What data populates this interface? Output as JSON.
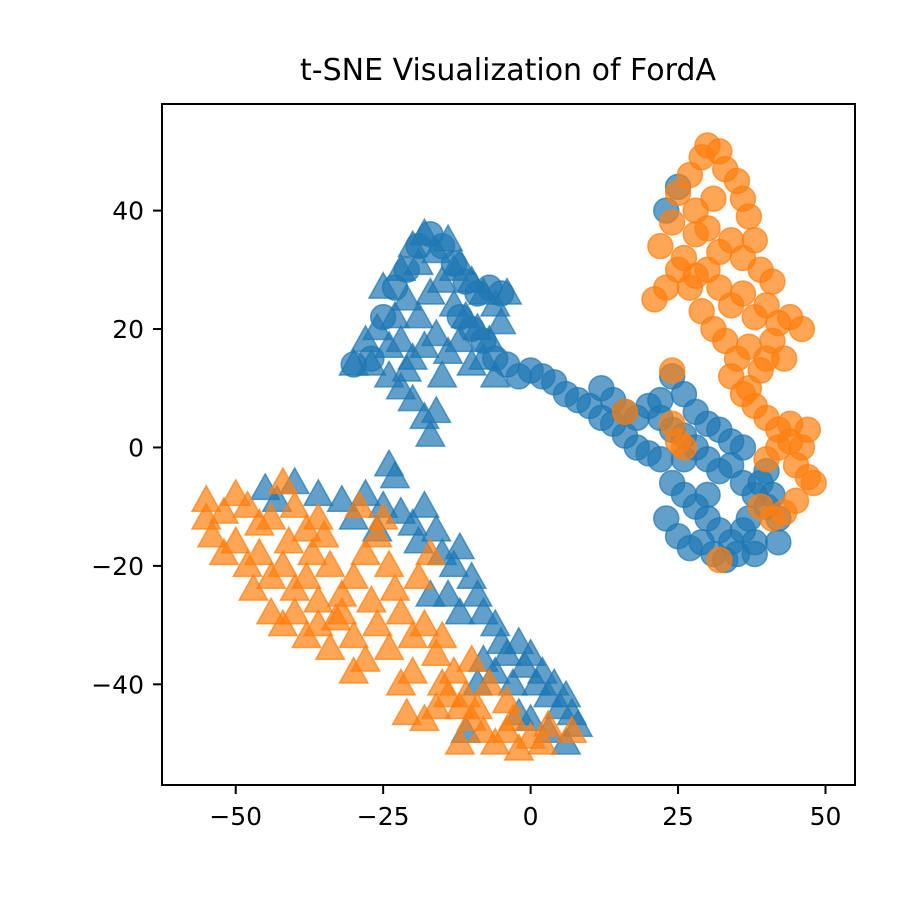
{
  "chart_data": {
    "type": "scatter",
    "title": "t-SNE Visualization of FordA",
    "xlabel": "",
    "ylabel": "",
    "xlim": [
      -62.5,
      55
    ],
    "ylim": [
      -57,
      58
    ],
    "x_ticks": [
      -50,
      -25,
      0,
      25,
      50
    ],
    "y_ticks": [
      -40,
      -20,
      0,
      20,
      40
    ],
    "x_tick_labels": [
      "−50",
      "−25",
      "0",
      "25",
      "50"
    ],
    "y_tick_labels": [
      "−40",
      "−20",
      "0",
      "20",
      "40"
    ],
    "grid": false,
    "legend": "none",
    "colors": {
      "class_0": "#1f77b4",
      "class_1": "#ff7f0e",
      "axes": "#000000"
    },
    "marker_names": {
      "circle": "circle-marker",
      "triangle": "triangle-marker"
    },
    "alpha": 0.7,
    "series": [
      {
        "color": "#1f77b4",
        "marker": "triangle",
        "points": [
          [
            -25,
            27
          ],
          [
            -22,
            30
          ],
          [
            -20,
            34
          ],
          [
            -18,
            36
          ],
          [
            -16,
            33
          ],
          [
            -14,
            35
          ],
          [
            -12,
            31
          ],
          [
            -10,
            28
          ],
          [
            -8,
            26
          ],
          [
            -6,
            24
          ],
          [
            -4,
            26
          ],
          [
            -23,
            22
          ],
          [
            -21,
            25
          ],
          [
            -19,
            22
          ],
          [
            -17,
            26
          ],
          [
            -15,
            28
          ],
          [
            -13,
            24
          ],
          [
            -11,
            22
          ],
          [
            -9,
            20
          ],
          [
            -7,
            18
          ],
          [
            -28,
            18
          ],
          [
            -26,
            20
          ],
          [
            -24,
            17
          ],
          [
            -22,
            18
          ],
          [
            -20,
            15
          ],
          [
            -18,
            17
          ],
          [
            -16,
            19
          ],
          [
            -14,
            16
          ],
          [
            -12,
            18
          ],
          [
            -10,
            14
          ],
          [
            -8,
            15
          ],
          [
            -30,
            14
          ],
          [
            -27,
            14
          ],
          [
            -24,
            12
          ],
          [
            -22,
            10
          ],
          [
            -20,
            8
          ],
          [
            -18,
            5
          ],
          [
            -17,
            2
          ],
          [
            -16,
            6
          ],
          [
            -21,
            13
          ],
          [
            -6,
            12
          ],
          [
            -13,
            30
          ],
          [
            -19,
            31
          ],
          [
            -5,
            21
          ],
          [
            -15,
            12
          ],
          [
            -40,
            -6
          ],
          [
            -36,
            -8
          ],
          [
            -32,
            -9
          ],
          [
            -28,
            -8
          ],
          [
            -25,
            -10
          ],
          [
            -23,
            -5
          ],
          [
            -22,
            -11
          ],
          [
            -20,
            -13
          ],
          [
            -18,
            -10
          ],
          [
            -16,
            -14
          ],
          [
            -15,
            -18
          ],
          [
            -13,
            -20
          ],
          [
            -12,
            -17
          ],
          [
            -10,
            -22
          ],
          [
            -9,
            -25
          ],
          [
            -8,
            -28
          ],
          [
            -6,
            -30
          ],
          [
            -5,
            -33
          ],
          [
            -4,
            -35
          ],
          [
            -2,
            -33
          ],
          [
            -1,
            -37
          ],
          [
            0,
            -35
          ],
          [
            1,
            -40
          ],
          [
            2,
            -38
          ],
          [
            3,
            -42
          ],
          [
            4,
            -40
          ],
          [
            5,
            -44
          ],
          [
            6,
            -42
          ],
          [
            7,
            -45
          ],
          [
            8,
            -47
          ],
          [
            -3,
            -40
          ],
          [
            -6,
            -38
          ],
          [
            -8,
            -36
          ],
          [
            -12,
            -28
          ],
          [
            -14,
            -25
          ],
          [
            -19,
            -16
          ],
          [
            -26,
            -14
          ],
          [
            -30,
            -12
          ],
          [
            -45,
            -7
          ],
          [
            -43,
            -9
          ],
          [
            0,
            -46
          ],
          [
            3,
            -48
          ],
          [
            6,
            -50
          ],
          [
            -2,
            -45
          ],
          [
            -9,
            -40
          ],
          [
            -11,
            -48
          ],
          [
            -17,
            -25
          ],
          [
            -24,
            -3
          ]
        ]
      },
      {
        "color": "#ff7f0e",
        "marker": "triangle",
        "points": [
          [
            -55,
            -9
          ],
          [
            -52,
            -11
          ],
          [
            -50,
            -8
          ],
          [
            -48,
            -10
          ],
          [
            -46,
            -13
          ],
          [
            -44,
            -12
          ],
          [
            -42,
            -6
          ],
          [
            -40,
            -10
          ],
          [
            -38,
            -14
          ],
          [
            -36,
            -12
          ],
          [
            -54,
            -15
          ],
          [
            -52,
            -18
          ],
          [
            -50,
            -16
          ],
          [
            -48,
            -20
          ],
          [
            -46,
            -18
          ],
          [
            -44,
            -22
          ],
          [
            -42,
            -20
          ],
          [
            -40,
            -24
          ],
          [
            -38,
            -22
          ],
          [
            -36,
            -26
          ],
          [
            -34,
            -20
          ],
          [
            -32,
            -25
          ],
          [
            -30,
            -22
          ],
          [
            -28,
            -18
          ],
          [
            -26,
            -15
          ],
          [
            -24,
            -20
          ],
          [
            -44,
            -28
          ],
          [
            -42,
            -30
          ],
          [
            -40,
            -28
          ],
          [
            -38,
            -32
          ],
          [
            -36,
            -30
          ],
          [
            -34,
            -34
          ],
          [
            -32,
            -28
          ],
          [
            -30,
            -32
          ],
          [
            -28,
            -36
          ],
          [
            -26,
            -30
          ],
          [
            -24,
            -34
          ],
          [
            -22,
            -28
          ],
          [
            -20,
            -32
          ],
          [
            -18,
            -30
          ],
          [
            -16,
            -35
          ],
          [
            -15,
            -40
          ],
          [
            -14,
            -42
          ],
          [
            -12,
            -44
          ],
          [
            -10,
            -46
          ],
          [
            -8,
            -48
          ],
          [
            -6,
            -50
          ],
          [
            -4,
            -48
          ],
          [
            -2,
            -51
          ],
          [
            0,
            -49
          ],
          [
            2,
            -50
          ],
          [
            -18,
            -46
          ],
          [
            -16,
            -44
          ],
          [
            -20,
            -38
          ],
          [
            -22,
            -40
          ],
          [
            -13,
            -38
          ],
          [
            -11,
            -42
          ],
          [
            -7,
            -40
          ],
          [
            -10,
            -36
          ],
          [
            -4,
            -43
          ],
          [
            -3,
            -46
          ],
          [
            3,
            -47
          ],
          [
            7,
            -48
          ],
          [
            -55,
            -12
          ],
          [
            -30,
            -38
          ],
          [
            -27,
            -26
          ],
          [
            -35,
            -15
          ],
          [
            -47,
            -24
          ],
          [
            -37,
            -18
          ],
          [
            -23,
            -24
          ],
          [
            -19,
            -22
          ],
          [
            -17,
            -18
          ],
          [
            -33,
            -29
          ],
          [
            -41,
            -16
          ],
          [
            -29,
            -10
          ],
          [
            -25,
            -12
          ],
          [
            -15,
            -32
          ],
          [
            -12,
            -50
          ],
          [
            -9,
            -44
          ],
          [
            -21,
            -45
          ]
        ]
      },
      {
        "color": "#1f77b4",
        "marker": "circle",
        "points": [
          [
            -30,
            14
          ],
          [
            -27,
            15
          ],
          [
            -25,
            22
          ],
          [
            -23,
            27
          ],
          [
            -21,
            30
          ],
          [
            -19,
            34
          ],
          [
            -17,
            36
          ],
          [
            -15,
            34
          ],
          [
            -13,
            31
          ],
          [
            -11,
            28
          ],
          [
            -9,
            26
          ],
          [
            -7,
            27
          ],
          [
            -5,
            26
          ],
          [
            -12,
            22
          ],
          [
            -10,
            20
          ],
          [
            -8,
            18
          ],
          [
            -6,
            15
          ],
          [
            -4,
            14
          ],
          [
            -2,
            12
          ],
          [
            0,
            13
          ],
          [
            2,
            12
          ],
          [
            4,
            11
          ],
          [
            6,
            9
          ],
          [
            8,
            8
          ],
          [
            10,
            7
          ],
          [
            12,
            5
          ],
          [
            14,
            4
          ],
          [
            16,
            6
          ],
          [
            18,
            5
          ],
          [
            20,
            7
          ],
          [
            22,
            5
          ],
          [
            24,
            3
          ],
          [
            26,
            2
          ],
          [
            28,
            0
          ],
          [
            30,
            -2
          ],
          [
            32,
            -4
          ],
          [
            34,
            -3
          ],
          [
            36,
            -6
          ],
          [
            38,
            -8
          ],
          [
            40,
            -10
          ],
          [
            42,
            -12
          ],
          [
            22,
            -2
          ],
          [
            24,
            -6
          ],
          [
            26,
            -8
          ],
          [
            28,
            -10
          ],
          [
            30,
            -12
          ],
          [
            32,
            -14
          ],
          [
            34,
            -16
          ],
          [
            36,
            -14
          ],
          [
            38,
            -16
          ],
          [
            23,
            -12
          ],
          [
            25,
            -15
          ],
          [
            27,
            -17
          ],
          [
            29,
            -16
          ],
          [
            31,
            -18
          ],
          [
            33,
            -19
          ],
          [
            35,
            -18
          ],
          [
            37,
            -12
          ],
          [
            39,
            -6
          ],
          [
            41,
            -8
          ],
          [
            12,
            10
          ],
          [
            14,
            8
          ],
          [
            16,
            2
          ],
          [
            18,
            0
          ],
          [
            20,
            -1
          ],
          [
            22,
            8
          ],
          [
            24,
            12
          ],
          [
            26,
            9
          ],
          [
            28,
            6
          ],
          [
            30,
            4
          ],
          [
            32,
            3
          ],
          [
            34,
            1
          ],
          [
            36,
            0
          ],
          [
            25,
            44
          ],
          [
            23,
            40
          ],
          [
            40,
            -4
          ],
          [
            42,
            -16
          ],
          [
            38,
            -18
          ],
          [
            26,
            -2
          ],
          [
            30,
            -8
          ]
        ]
      },
      {
        "color": "#ff7f0e",
        "marker": "circle",
        "points": [
          [
            22,
            34
          ],
          [
            24,
            38
          ],
          [
            25,
            43
          ],
          [
            27,
            46
          ],
          [
            29,
            49
          ],
          [
            30,
            51
          ],
          [
            32,
            50
          ],
          [
            33,
            47
          ],
          [
            35,
            45
          ],
          [
            36,
            42
          ],
          [
            37,
            39
          ],
          [
            38,
            35
          ],
          [
            26,
            32
          ],
          [
            28,
            29
          ],
          [
            30,
            30
          ],
          [
            32,
            27
          ],
          [
            34,
            24
          ],
          [
            36,
            26
          ],
          [
            38,
            22
          ],
          [
            40,
            24
          ],
          [
            42,
            21
          ],
          [
            44,
            22
          ],
          [
            46,
            20
          ],
          [
            41,
            18
          ],
          [
            43,
            15
          ],
          [
            39,
            13
          ],
          [
            37,
            10
          ],
          [
            38,
            7
          ],
          [
            40,
            5
          ],
          [
            42,
            3
          ],
          [
            44,
            1
          ],
          [
            46,
            0
          ],
          [
            45,
            -3
          ],
          [
            47,
            -5
          ],
          [
            48,
            -6
          ],
          [
            42,
            0
          ],
          [
            40,
            -2
          ],
          [
            33,
            18
          ],
          [
            35,
            15
          ],
          [
            31,
            20
          ],
          [
            29,
            23
          ],
          [
            27,
            27
          ],
          [
            25,
            30
          ],
          [
            23,
            27
          ],
          [
            21,
            25
          ],
          [
            31,
            42
          ],
          [
            28,
            40
          ],
          [
            30,
            37
          ],
          [
            34,
            35
          ],
          [
            36,
            32
          ],
          [
            32,
            33
          ],
          [
            39,
            30
          ],
          [
            41,
            28
          ],
          [
            37,
            17
          ],
          [
            34,
            12
          ],
          [
            36,
            9
          ],
          [
            24,
            13
          ],
          [
            16,
            6
          ],
          [
            24,
            4
          ],
          [
            25,
            1
          ],
          [
            26,
            0
          ],
          [
            32,
            -19
          ],
          [
            39,
            -10
          ],
          [
            41,
            -12
          ],
          [
            43,
            -11
          ],
          [
            45,
            -9
          ],
          [
            44,
            4
          ],
          [
            47,
            3
          ],
          [
            28,
            36
          ],
          [
            40,
            15
          ]
        ]
      }
    ]
  }
}
